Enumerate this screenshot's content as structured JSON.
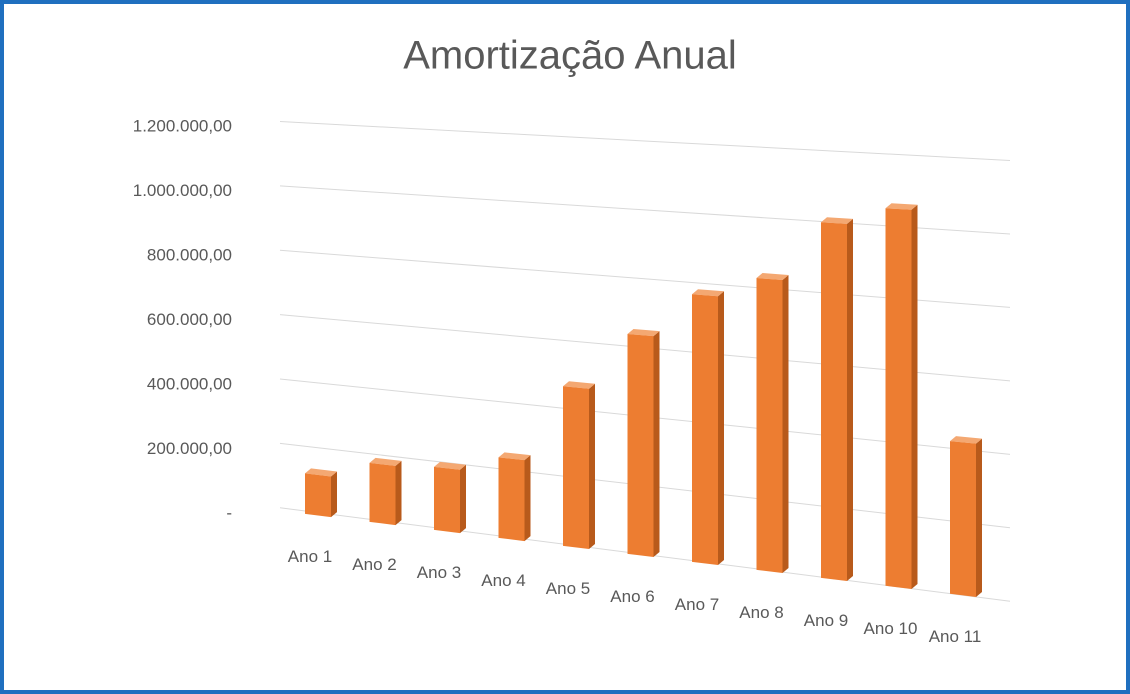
{
  "chart_data": {
    "type": "bar3d",
    "title": "Amortização Anual",
    "categories": [
      "Ano 1",
      "Ano 2",
      "Ano 3",
      "Ano 4",
      "Ano 5",
      "Ano 6",
      "Ano 7",
      "Ano 8",
      "Ano 9",
      "Ano 10",
      "Ano 11"
    ],
    "values": [
      125000,
      180000,
      190000,
      240000,
      470000,
      640000,
      770000,
      830000,
      1000000,
      1050000,
      420000
    ],
    "color": "#ed7d31",
    "ylim": [
      0,
      1200000
    ],
    "yticks": [
      {
        "value": 0,
        "label": "-"
      },
      {
        "value": 200000,
        "label": "200.000,00"
      },
      {
        "value": 400000,
        "label": "400.000,00"
      },
      {
        "value": 600000,
        "label": "600.000,00"
      },
      {
        "value": 800000,
        "label": "800.000,00"
      },
      {
        "value": 1000000,
        "label": "1.000.000,00"
      },
      {
        "value": 1200000,
        "label": "1.200.000,00"
      }
    ],
    "grid": true
  }
}
